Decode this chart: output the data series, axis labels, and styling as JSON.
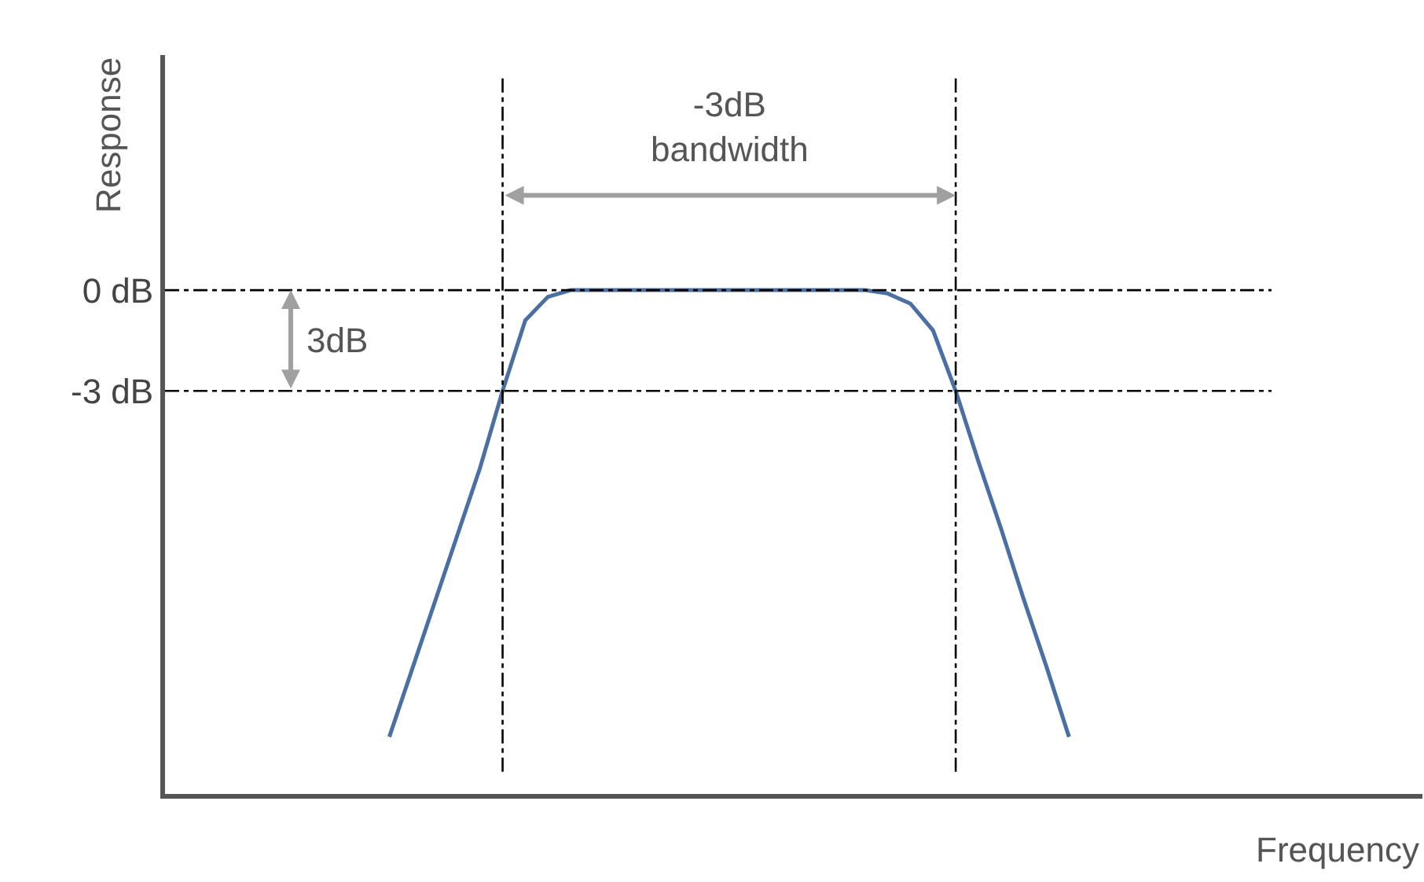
{
  "chart_data": {
    "type": "line",
    "ylabel": "Response",
    "categories": [
      null,
      null,
      null,
      null,
      null,
      null,
      null,
      null,
      null,
      null,
      null,
      null,
      null,
      null,
      null,
      null,
      null,
      null,
      null,
      null,
      null,
      null,
      null,
      null,
      null,
      null,
      null,
      null,
      null,
      null,
      null
    ],
    "series": [
      {
        "color": "#4a6fa5",
        "values": [
          -13.3,
          -11.3,
          -9.3,
          -7.3,
          -5.3,
          -3,
          -0.9,
          -0.2,
          0,
          0,
          0,
          0,
          0,
          0,
          0,
          0,
          0,
          0,
          0,
          0,
          0,
          0,
          -0.1,
          -0.4,
          -1.2,
          -3,
          -5.1,
          -7.1,
          -9.2,
          -11.2,
          -13.3
        ]
      }
    ],
    "ylim": [
      -15,
      7
    ],
    "yticks": [
      {
        "value": 0,
        "label": "0 dB"
      },
      {
        "value": -3,
        "label": "-3 dB"
      }
    ],
    "tick_labels": "y",
    "marker": "none",
    "line_style": "solid",
    "ref_lines": [
      {
        "axis": "y",
        "value": 0,
        "line_style": "dashdot"
      },
      {
        "axis": "y",
        "value": -3,
        "line_style": "dashdot"
      }
    ],
    "annotations": [
      "-3dB\nbandwidth",
      "3dB",
      "Frequency"
    ]
  }
}
